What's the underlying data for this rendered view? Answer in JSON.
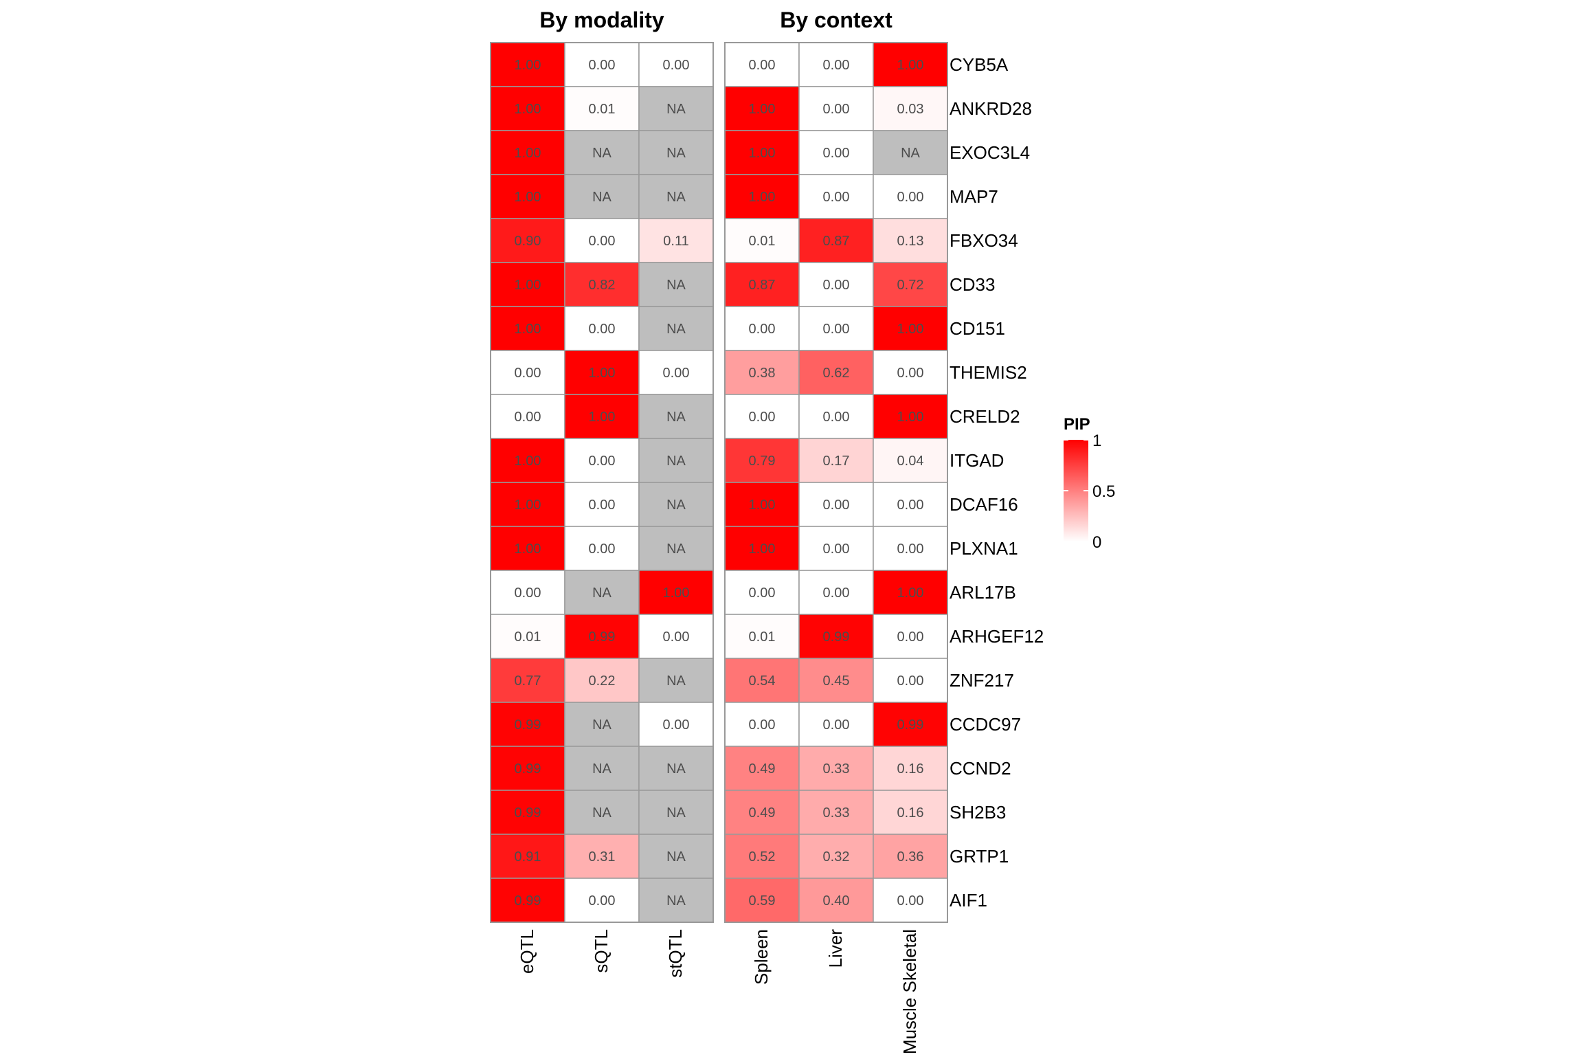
{
  "chart_data": {
    "type": "heatmap",
    "genes": [
      "CYB5A",
      "ANKRD28",
      "EXOC3L4",
      "MAP7",
      "FBXO34",
      "CD33",
      "CD151",
      "THEMIS2",
      "CRELD2",
      "ITGAD",
      "DCAF16",
      "PLXNA1",
      "ARL17B",
      "ARHGEF12",
      "ZNF217",
      "CCDC97",
      "CCND2",
      "SH2B3",
      "GRTP1",
      "AIF1"
    ],
    "panels": [
      {
        "title": "By modality",
        "columns": [
          "eQTL",
          "sQTL",
          "stQTL"
        ],
        "values": [
          [
            1.0,
            0.0,
            0.0
          ],
          [
            1.0,
            0.01,
            null
          ],
          [
            1.0,
            null,
            null
          ],
          [
            1.0,
            null,
            null
          ],
          [
            0.9,
            0.0,
            0.11
          ],
          [
            1.0,
            0.82,
            null
          ],
          [
            1.0,
            0.0,
            null
          ],
          [
            0.0,
            1.0,
            0.0
          ],
          [
            0.0,
            1.0,
            null
          ],
          [
            1.0,
            0.0,
            null
          ],
          [
            1.0,
            0.0,
            null
          ],
          [
            1.0,
            0.0,
            null
          ],
          [
            0.0,
            null,
            1.0
          ],
          [
            0.01,
            0.99,
            0.0
          ],
          [
            0.77,
            0.22,
            null
          ],
          [
            0.99,
            null,
            0.0
          ],
          [
            0.99,
            null,
            null
          ],
          [
            0.99,
            null,
            null
          ],
          [
            0.91,
            0.31,
            null
          ],
          [
            0.99,
            0.0,
            null
          ]
        ]
      },
      {
        "title": "By context",
        "columns": [
          "Spleen",
          "Liver",
          "Muscle Skeletal"
        ],
        "values": [
          [
            0.0,
            0.0,
            1.0
          ],
          [
            1.0,
            0.0,
            0.03
          ],
          [
            1.0,
            0.0,
            null
          ],
          [
            1.0,
            0.0,
            0.0
          ],
          [
            0.01,
            0.87,
            0.13
          ],
          [
            0.87,
            0.0,
            0.72
          ],
          [
            0.0,
            0.0,
            1.0
          ],
          [
            0.38,
            0.62,
            0.0
          ],
          [
            0.0,
            0.0,
            1.0
          ],
          [
            0.79,
            0.17,
            0.04
          ],
          [
            1.0,
            0.0,
            0.0
          ],
          [
            1.0,
            0.0,
            0.0
          ],
          [
            0.0,
            0.0,
            1.0
          ],
          [
            0.01,
            0.99,
            0.0
          ],
          [
            0.54,
            0.45,
            0.0
          ],
          [
            0.0,
            0.0,
            0.99
          ],
          [
            0.49,
            0.33,
            0.16
          ],
          [
            0.49,
            0.33,
            0.16
          ],
          [
            0.52,
            0.32,
            0.36
          ],
          [
            0.59,
            0.4,
            0.0
          ]
        ]
      }
    ],
    "na_label": "NA",
    "legend": {
      "title": "PIP",
      "ticks": [
        {
          "value": 1,
          "label": "1"
        },
        {
          "value": 0.5,
          "label": "0.5"
        },
        {
          "value": 0,
          "label": "0"
        }
      ],
      "low_color": "#ffffff",
      "high_color": "#ff0000",
      "na_color": "#bebebe",
      "placement": "right"
    },
    "value_range": [
      0,
      1
    ]
  },
  "colors": {
    "cell_border": "#999999",
    "value_text": "#4d4d4d",
    "axis_text": "#000000"
  }
}
